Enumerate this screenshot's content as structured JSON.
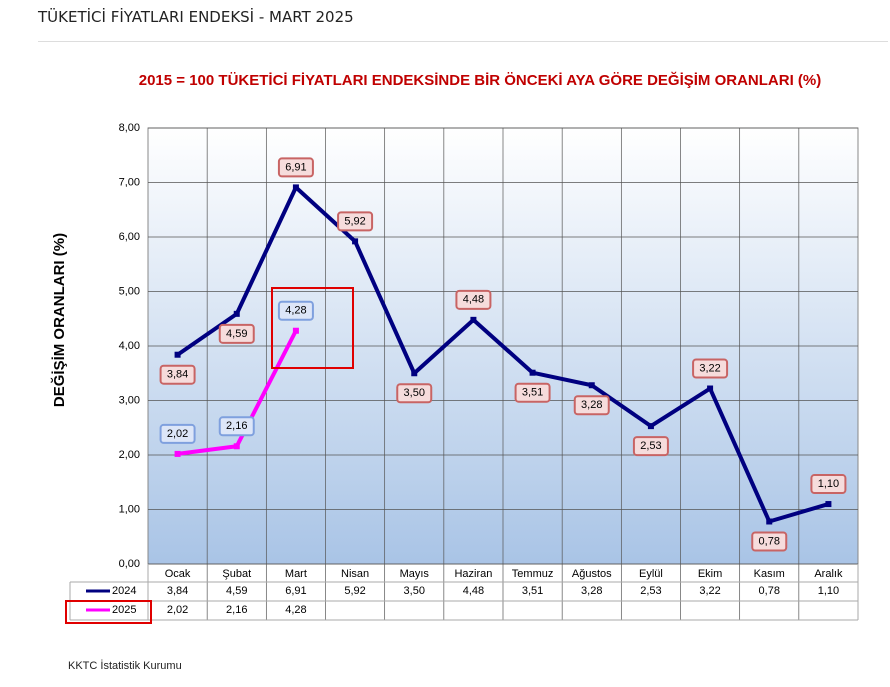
{
  "header": {
    "title": "TÜKETİCİ FİYATLARI ENDEKSİ - MART 2025"
  },
  "chart_data": {
    "type": "line",
    "title": "2015 = 100 TÜKETİCİ FİYATLARI ENDEKSİNDE BİR ÖNCEKİ AYA GÖRE DEĞİŞİM ORANLARI (%)",
    "y_label": "DEĞİŞİM ORANLARI (%)",
    "categories": [
      "Ocak",
      "Şubat",
      "Mart",
      "Nisan",
      "Mayıs",
      "Haziran",
      "Temmuz",
      "Ağustos",
      "Eylül",
      "Ekim",
      "Kasım",
      "Aralık"
    ],
    "series": [
      {
        "name": "2024",
        "color": "#000080",
        "values": [
          3.84,
          4.59,
          6.91,
          5.92,
          3.5,
          4.48,
          3.51,
          3.28,
          2.53,
          3.22,
          0.78,
          1.1
        ],
        "value_labels": [
          "3,84",
          "4,59",
          "6,91",
          "5,92",
          "3,50",
          "4,48",
          "3,51",
          "3,28",
          "2,53",
          "3,22",
          "0,78",
          "1,10"
        ]
      },
      {
        "name": "2025",
        "color": "#ff00ff",
        "values": [
          2.02,
          2.16,
          4.28,
          null,
          null,
          null,
          null,
          null,
          null,
          null,
          null,
          null
        ],
        "value_labels": [
          "2,02",
          "2,16",
          "4,28",
          null,
          null,
          null,
          null,
          null,
          null,
          null,
          null,
          null
        ]
      }
    ],
    "ylim": [
      0,
      8
    ],
    "yticks": [
      {
        "value": 0,
        "label": "0,00"
      },
      {
        "value": 1,
        "label": "1,00"
      },
      {
        "value": 2,
        "label": "2,00"
      },
      {
        "value": 3,
        "label": "3,00"
      },
      {
        "value": 4,
        "label": "4,00"
      },
      {
        "value": 5,
        "label": "5,00"
      },
      {
        "value": 6,
        "label": "6,00"
      },
      {
        "value": 7,
        "label": "7,00"
      },
      {
        "value": 8,
        "label": "8,00"
      }
    ],
    "grid": true
  },
  "source": "KKTC İstatistik Kurumu"
}
